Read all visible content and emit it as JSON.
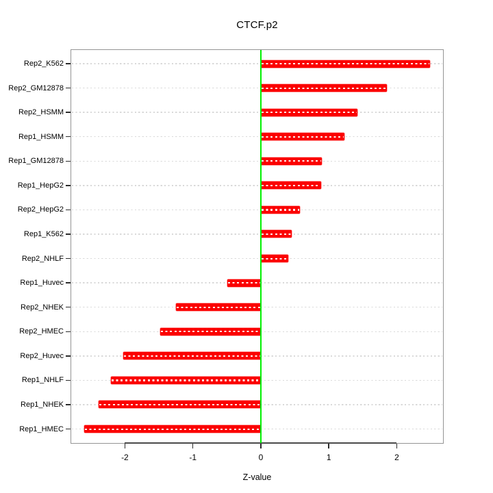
{
  "chart_data": {
    "type": "bar",
    "orientation": "horizontal",
    "title": "CTCF.p2",
    "xlabel": "Z-value",
    "categories": [
      "Rep2_K562",
      "Rep2_GM12878",
      "Rep2_HSMM",
      "Rep1_HSMM",
      "Rep1_GM12878",
      "Rep1_HepG2",
      "Rep2_HepG2",
      "Rep1_K562",
      "Rep2_NHLF",
      "Rep1_Huvec",
      "Rep2_NHEK",
      "Rep2_HMEC",
      "Rep2_Huvec",
      "Rep1_NHLF",
      "Rep1_NHEK",
      "Rep1_HMEC"
    ],
    "values": [
      2.49,
      1.85,
      1.42,
      1.23,
      0.9,
      0.89,
      0.57,
      0.45,
      0.4,
      -0.49,
      -1.25,
      -1.48,
      -2.02,
      -2.21,
      -2.39,
      -2.6
    ],
    "xlim": [
      -2.8,
      2.69
    ],
    "xticks": [
      -2,
      -1,
      0,
      1,
      2
    ],
    "xtick_labels": [
      "-2",
      "-1",
      "0",
      "1",
      "2"
    ],
    "zero_line": 0,
    "grid": "dotted horizontal line per category, full plot width",
    "legend": "none",
    "colors": {
      "bar": "#fb0000",
      "bar_dash_overlay": "#ffffff",
      "zero_line": "#00f000",
      "grid": "#d9d9d9",
      "box": "#949494",
      "axis": "#1a1a1a",
      "text": "#000000",
      "background": "#ffffff"
    }
  }
}
